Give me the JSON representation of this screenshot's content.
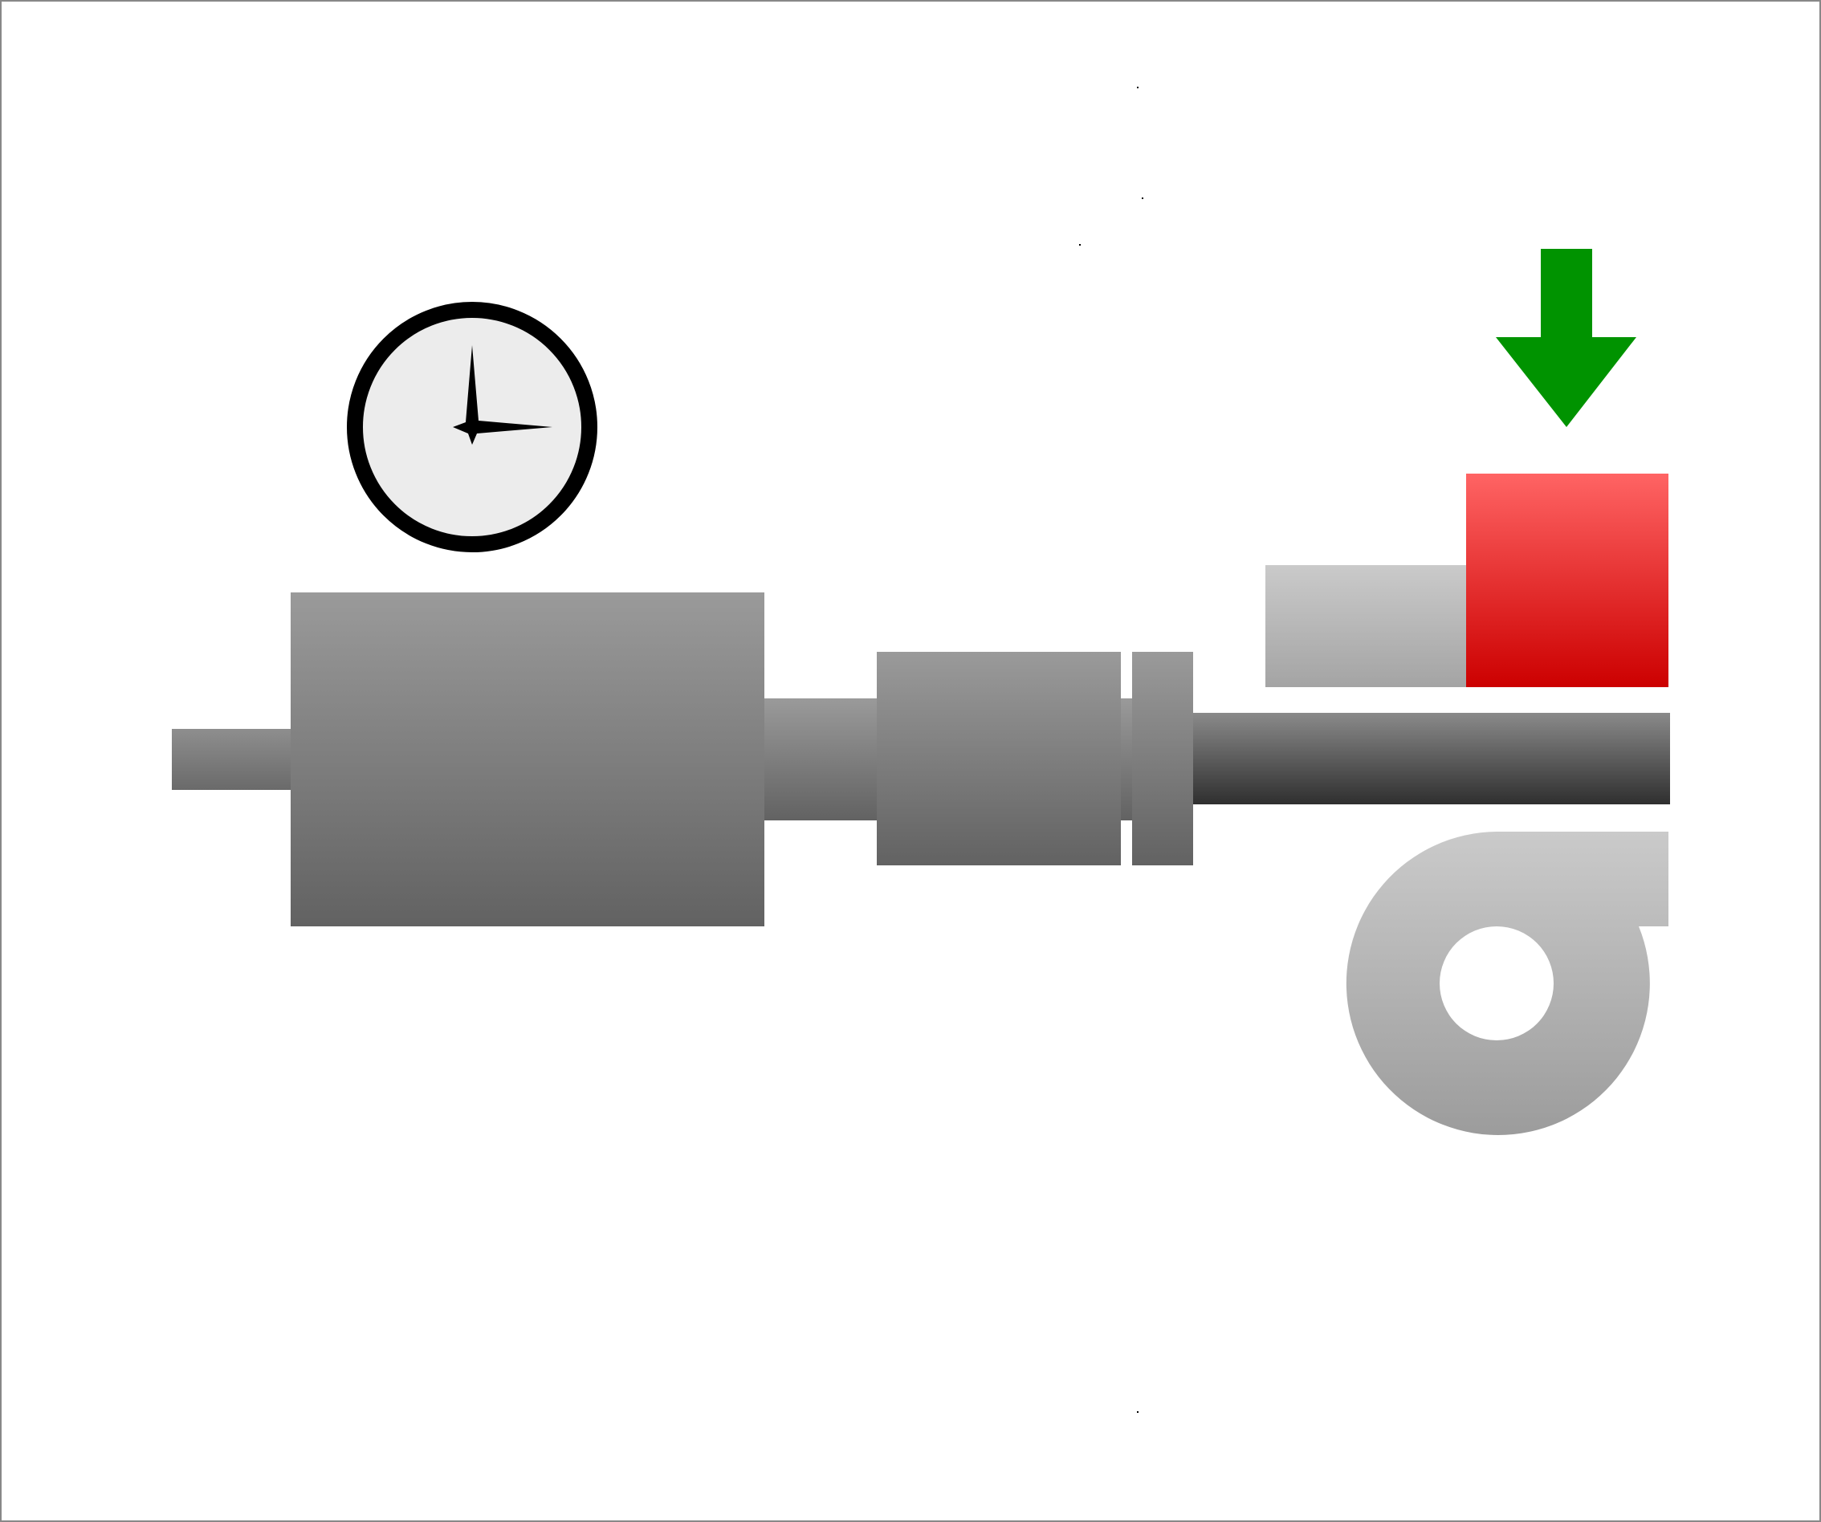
{
  "diagram": {
    "elements": [
      {
        "id": "pressure-gauge",
        "kind": "gauge",
        "icon": "gauge-icon"
      },
      {
        "id": "left-shaft-stub",
        "kind": "shaft"
      },
      {
        "id": "drive-housing",
        "kind": "housing"
      },
      {
        "id": "middle-shaft",
        "kind": "shaft"
      },
      {
        "id": "coupling-block",
        "kind": "coupling"
      },
      {
        "id": "coupling-flange",
        "kind": "flange"
      },
      {
        "id": "main-shaft",
        "kind": "shaft"
      },
      {
        "id": "bearing-support",
        "kind": "support"
      },
      {
        "id": "heater-block",
        "kind": "heater"
      },
      {
        "id": "feed-arrow",
        "kind": "arrow",
        "icon": "arrow-down-icon",
        "direction": "down"
      },
      {
        "id": "blower-casing",
        "kind": "blower",
        "icon": "centrifugal-fan-icon"
      }
    ],
    "colors": {
      "metal_light": "#9a9a9a",
      "metal_dark": "#626262",
      "shaft_dark": "#2f2f2f",
      "support_light": "#cacaca",
      "support_dark": "#a4a4a4",
      "heater_light": "#ff6464",
      "heater_dark": "#cc0000",
      "arrow": "#009300",
      "gauge_face": "#ececec",
      "gauge_rim": "#000000",
      "outline": "#888888"
    }
  }
}
